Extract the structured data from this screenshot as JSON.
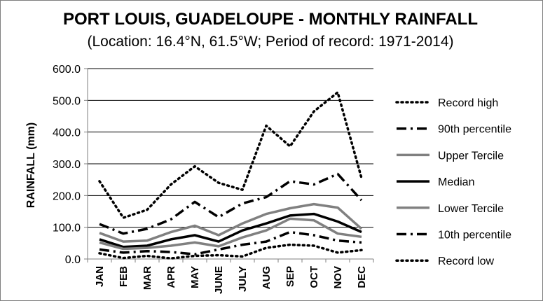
{
  "chart_data": {
    "type": "line",
    "title": "PORT LOUIS, GUADELOUPE - MONTHLY RAINFALL",
    "subtitle": "(Location: 16.4°N, 61.5°W; Period of record: 1971-2014)",
    "ylabel": "RAINFALL (mm)",
    "xlabel": "",
    "categories": [
      "JAN",
      "FEB",
      "MAR",
      "APR",
      "MAY",
      "JUNE",
      "JULY",
      "AUG",
      "SEP",
      "OCT",
      "NOV",
      "DEC"
    ],
    "ylim": [
      0,
      600
    ],
    "yticks": [
      "0.0",
      "100.0",
      "200.0",
      "300.0",
      "400.0",
      "500.0",
      "600.0"
    ],
    "grid": true,
    "legend_position": "right",
    "series": [
      {
        "name": "Record high",
        "style": "dotted",
        "color": "#000000",
        "values": [
          245,
          130,
          155,
          235,
          292,
          240,
          218,
          420,
          355,
          465,
          525,
          255
        ]
      },
      {
        "name": "90th percentile",
        "style": "dashdot",
        "color": "#000000",
        "values": [
          110,
          80,
          95,
          125,
          180,
          132,
          175,
          195,
          245,
          235,
          268,
          185
        ]
      },
      {
        "name": "Upper Tercile",
        "style": "solid",
        "color": "#808080",
        "values": [
          82,
          55,
          58,
          85,
          105,
          75,
          112,
          142,
          160,
          173,
          162,
          95
        ]
      },
      {
        "name": "Median",
        "style": "solid",
        "color": "#000000",
        "values": [
          62,
          38,
          42,
          62,
          75,
          55,
          90,
          112,
          137,
          142,
          118,
          85
        ]
      },
      {
        "name": "Lower Tercile",
        "style": "solid",
        "color": "#808080",
        "values": [
          52,
          32,
          35,
          42,
          52,
          40,
          68,
          90,
          127,
          122,
          80,
          70
        ]
      },
      {
        "name": "10th percentile",
        "style": "dashdot",
        "color": "#000000",
        "values": [
          30,
          20,
          25,
          22,
          15,
          30,
          45,
          55,
          85,
          75,
          58,
          52
        ]
      },
      {
        "name": "Record low",
        "style": "dotted",
        "color": "#000000",
        "values": [
          18,
          3,
          10,
          2,
          10,
          12,
          8,
          35,
          45,
          42,
          20,
          28
        ]
      }
    ]
  }
}
